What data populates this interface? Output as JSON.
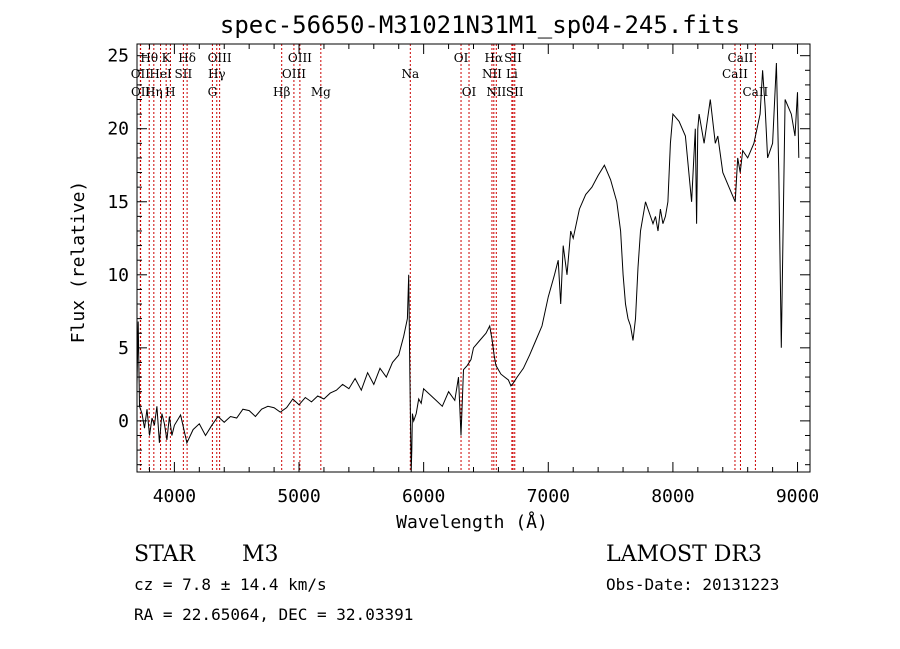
{
  "chart_data": {
    "type": "line",
    "title": "spec-56650-M31021N31M1_sp04-245.fits",
    "xlabel": "Wavelength (Å)",
    "ylabel": "Flux (relative)",
    "xlim": [
      3700,
      9100
    ],
    "ylim": [
      -3.5,
      25.8
    ],
    "xticks": [
      4000,
      5000,
      6000,
      7000,
      8000,
      9000
    ],
    "yticks": [
      0,
      5,
      10,
      15,
      20,
      25
    ],
    "grid": false,
    "spectrum": {
      "name": "flux",
      "x": [
        3700,
        3710,
        3720,
        3740,
        3760,
        3780,
        3800,
        3820,
        3840,
        3860,
        3880,
        3900,
        3920,
        3940,
        3960,
        3980,
        4000,
        4050,
        4100,
        4150,
        4200,
        4250,
        4300,
        4350,
        4400,
        4450,
        4500,
        4550,
        4600,
        4650,
        4700,
        4750,
        4800,
        4850,
        4900,
        4950,
        5000,
        5050,
        5100,
        5150,
        5200,
        5250,
        5300,
        5350,
        5400,
        5450,
        5500,
        5550,
        5600,
        5650,
        5700,
        5750,
        5800,
        5840,
        5870,
        5880,
        5890,
        5895,
        5900,
        5905,
        5910,
        5920,
        5940,
        5960,
        5980,
        6000,
        6050,
        6100,
        6150,
        6200,
        6250,
        6280,
        6300,
        6320,
        6350,
        6380,
        6400,
        6450,
        6500,
        6530,
        6550,
        6565,
        6580,
        6600,
        6620,
        6650,
        6680,
        6700,
        6720,
        6750,
        6800,
        6850,
        6900,
        6950,
        7000,
        7050,
        7080,
        7100,
        7120,
        7150,
        7180,
        7200,
        7250,
        7300,
        7350,
        7400,
        7450,
        7500,
        7550,
        7580,
        7600,
        7620,
        7640,
        7660,
        7680,
        7700,
        7720,
        7740,
        7760,
        7780,
        7800,
        7820,
        7840,
        7860,
        7880,
        7900,
        7920,
        7940,
        7960,
        7980,
        8000,
        8050,
        8100,
        8150,
        8180,
        8190,
        8200,
        8210,
        8250,
        8300,
        8320,
        8340,
        8360,
        8400,
        8450,
        8500,
        8520,
        8540,
        8560,
        8600,
        8650,
        8700,
        8720,
        8740,
        8760,
        8800,
        8830,
        8850,
        8870,
        8900,
        8950,
        8980,
        9000,
        9010
      ],
      "values": [
        2.5,
        6.8,
        1.0,
        0.5,
        -0.5,
        0.8,
        -1.0,
        0.2,
        -0.3,
        1.0,
        -1.5,
        0.5,
        -0.2,
        -1.3,
        0.3,
        -1.0,
        -0.3,
        0.4,
        -1.5,
        -0.6,
        -0.2,
        -1.0,
        -0.3,
        0.3,
        -0.1,
        0.3,
        0.2,
        0.8,
        0.7,
        0.3,
        0.8,
        1.0,
        0.9,
        0.6,
        0.9,
        1.5,
        1.1,
        1.6,
        1.3,
        1.7,
        1.5,
        1.9,
        2.1,
        2.5,
        2.2,
        2.9,
        2.1,
        3.3,
        2.5,
        3.6,
        3.0,
        4.0,
        4.5,
        5.8,
        7.0,
        10.0,
        3.0,
        -0.5,
        -3.5,
        -2.0,
        0.5,
        0.0,
        0.5,
        1.5,
        1.2,
        2.2,
        1.8,
        1.4,
        1.0,
        2.0,
        1.4,
        3.0,
        -1.0,
        3.5,
        3.8,
        4.2,
        5.0,
        5.5,
        6.0,
        6.5,
        5.5,
        4.5,
        3.8,
        3.5,
        3.2,
        3.0,
        2.8,
        2.4,
        2.6,
        3.0,
        3.6,
        4.5,
        5.5,
        6.5,
        8.5,
        10.0,
        11.0,
        8.0,
        12.0,
        10.0,
        13.0,
        12.5,
        14.5,
        15.5,
        16.0,
        16.8,
        17.5,
        16.5,
        15.0,
        13.0,
        10.0,
        8.0,
        7.0,
        6.5,
        5.5,
        7.0,
        10.5,
        13.0,
        14.0,
        15.0,
        14.5,
        14.0,
        13.5,
        14.0,
        13.0,
        14.5,
        13.5,
        14.0,
        15.0,
        19.0,
        21.0,
        20.5,
        19.5,
        15.0,
        20.0,
        13.5,
        20.0,
        21.0,
        19.0,
        22.0,
        20.5,
        19.0,
        19.5,
        17.0,
        16.0,
        15.0,
        18.0,
        17.0,
        18.5,
        18.0,
        19.0,
        21.0,
        24.0,
        21.5,
        18.0,
        19.0,
        24.5,
        17.0,
        5.0,
        22.0,
        21.0,
        19.5,
        22.5,
        18.0
      ]
    },
    "lines": [
      {
        "label": "Hθ",
        "wl": 3798,
        "row": 1
      },
      {
        "label": "OII",
        "wl": 3727,
        "row": 2
      },
      {
        "label": "OII",
        "wl": 3729,
        "row": 3
      },
      {
        "label": "HeI",
        "wl": 3889,
        "row": 2
      },
      {
        "label": "Hη",
        "wl": 3835,
        "row": 3
      },
      {
        "label": "K",
        "wl": 3934,
        "row": 1
      },
      {
        "label": "SII",
        "wl": 4072,
        "row": 2
      },
      {
        "label": "H",
        "wl": 3968,
        "row": 3
      },
      {
        "label": "Hδ",
        "wl": 4102,
        "row": 1
      },
      {
        "label": "OIII",
        "wl": 4363,
        "row": 1
      },
      {
        "label": "Hγ",
        "wl": 4340,
        "row": 2
      },
      {
        "label": "G",
        "wl": 4305,
        "row": 3
      },
      {
        "label": "OIII",
        "wl": 5007,
        "row": 1
      },
      {
        "label": "OIII",
        "wl": 4959,
        "row": 2
      },
      {
        "label": "Hβ",
        "wl": 4861,
        "row": 3
      },
      {
        "label": "Mg",
        "wl": 5175,
        "row": 3
      },
      {
        "label": "Na",
        "wl": 5893,
        "row": 2
      },
      {
        "label": "OI",
        "wl": 6300,
        "row": 1
      },
      {
        "label": "OI",
        "wl": 6364,
        "row": 3
      },
      {
        "label": "Hα",
        "wl": 6563,
        "row": 1
      },
      {
        "label": "SII",
        "wl": 6717,
        "row": 1
      },
      {
        "label": "NII",
        "wl": 6548,
        "row": 2
      },
      {
        "label": "Li",
        "wl": 6708,
        "row": 2
      },
      {
        "label": "NII",
        "wl": 6583,
        "row": 3
      },
      {
        "label": "SII",
        "wl": 6731,
        "row": 3
      },
      {
        "label": "CaII",
        "wl": 8542,
        "row": 1
      },
      {
        "label": "CaII",
        "wl": 8498,
        "row": 2
      },
      {
        "label": "CaII",
        "wl": 8662,
        "row": 3
      }
    ]
  },
  "info": {
    "class": "STAR",
    "subclass": "M3",
    "survey": "LAMOST DR3",
    "cz": "cz = 7.8 ± 14.4 km/s",
    "obs_date": "Obs-Date: 20131223",
    "coords": "RA =  22.65064, DEC =  32.03391"
  },
  "colors": {
    "axis": "#000000",
    "spectrum": "#000000",
    "line_marker": "#cc0000"
  }
}
